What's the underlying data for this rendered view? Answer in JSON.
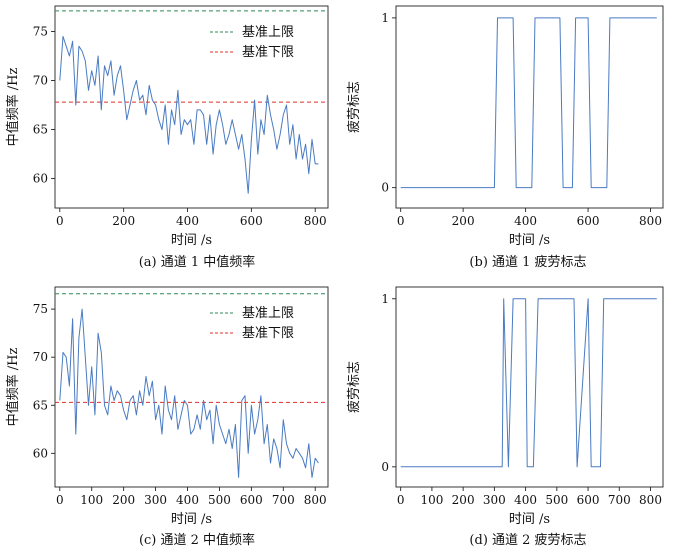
{
  "chart_data": [
    {
      "type": "line",
      "caption": "(a) 通道 1 中值频率",
      "xlabel": "时间 /s",
      "ylabel": "中值频率 /Hz",
      "xlim": [
        -15,
        840
      ],
      "ylim": [
        57,
        77.6
      ],
      "xticks": [
        0,
        200,
        400,
        600,
        800
      ],
      "yticks": [
        60,
        65,
        70,
        75
      ],
      "grid": false,
      "legend_position": "top-right",
      "reference_lines": [
        {
          "name": "基准上限",
          "y": 77.1,
          "color": "#2e8b57",
          "style": "dashed"
        },
        {
          "name": "基准下限",
          "y": 67.8,
          "color": "#e0302a",
          "style": "dashed"
        }
      ],
      "series": [
        {
          "name": "",
          "color": "#4a7bc2",
          "x": [
            0,
            10,
            20,
            30,
            40,
            50,
            60,
            70,
            80,
            90,
            100,
            110,
            120,
            130,
            140,
            150,
            160,
            170,
            180,
            190,
            200,
            210,
            220,
            230,
            240,
            250,
            260,
            270,
            280,
            290,
            300,
            310,
            320,
            330,
            340,
            350,
            360,
            370,
            380,
            390,
            400,
            410,
            420,
            430,
            440,
            450,
            460,
            470,
            480,
            490,
            500,
            510,
            520,
            530,
            540,
            550,
            560,
            570,
            580,
            590,
            600,
            610,
            620,
            630,
            640,
            650,
            660,
            670,
            680,
            690,
            700,
            710,
            720,
            730,
            740,
            750,
            760,
            770,
            780,
            790,
            800,
            810
          ],
          "y": [
            70.0,
            74.5,
            73.5,
            72.5,
            74.0,
            67.5,
            73.5,
            73.0,
            72.0,
            69.0,
            71.0,
            69.5,
            72.5,
            67.0,
            71.5,
            70.5,
            72.0,
            68.5,
            70.5,
            71.5,
            69.0,
            66.0,
            67.5,
            69.0,
            70.0,
            68.0,
            68.5,
            66.5,
            69.5,
            68.0,
            67.5,
            66.0,
            65.0,
            67.5,
            63.5,
            67.0,
            65.5,
            69.0,
            64.5,
            66.0,
            65.5,
            66.0,
            63.5,
            67.0,
            67.0,
            66.5,
            63.5,
            66.5,
            62.5,
            65.5,
            67.0,
            65.5,
            63.5,
            64.5,
            66.0,
            64.5,
            63.0,
            64.5,
            62.0,
            58.5,
            64.0,
            68.0,
            62.5,
            66.0,
            64.5,
            68.5,
            66.5,
            65.0,
            63.0,
            64.5,
            66.5,
            67.5,
            63.5,
            65.5,
            62.0,
            64.5,
            62.0,
            63.5,
            60.5,
            64.0,
            61.5,
            61.5
          ]
        }
      ]
    },
    {
      "type": "line",
      "caption": "(b) 通道 1 疲劳标志",
      "xlabel": "时间 /s",
      "ylabel": "疲劳标志",
      "xlim": [
        -15,
        840
      ],
      "ylim": [
        -0.12,
        1.07
      ],
      "xticks": [
        0,
        200,
        400,
        600,
        800
      ],
      "yticks": [
        0,
        1
      ],
      "grid": false,
      "series": [
        {
          "name": "",
          "color": "#4a7bc2",
          "x": [
            0,
            300,
            310,
            360,
            370,
            420,
            430,
            510,
            520,
            550,
            560,
            600,
            610,
            660,
            670,
            820
          ],
          "y": [
            0,
            0,
            1,
            1,
            0,
            0,
            1,
            1,
            0,
            0,
            1,
            1,
            0,
            0,
            1,
            1
          ]
        }
      ]
    },
    {
      "type": "line",
      "caption": "(c) 通道 2 中值频率",
      "xlabel": "时间 /s",
      "ylabel": "中值频率 /Hz",
      "xlim": [
        -15,
        840
      ],
      "ylim": [
        56.5,
        77.3
      ],
      "xticks": [
        0,
        100,
        200,
        300,
        400,
        500,
        600,
        700,
        800
      ],
      "yticks": [
        60,
        65,
        70,
        75
      ],
      "grid": false,
      "legend_position": "top-right",
      "reference_lines": [
        {
          "name": "基准上限",
          "y": 76.6,
          "color": "#2e8b57",
          "style": "dashed"
        },
        {
          "name": "基准下限",
          "y": 65.3,
          "color": "#e0302a",
          "style": "dashed"
        }
      ],
      "series": [
        {
          "name": "",
          "color": "#4a7bc2",
          "x": [
            0,
            10,
            20,
            30,
            40,
            50,
            60,
            70,
            80,
            90,
            100,
            110,
            120,
            130,
            140,
            150,
            160,
            170,
            180,
            190,
            200,
            210,
            220,
            230,
            240,
            250,
            260,
            270,
            280,
            290,
            300,
            310,
            320,
            330,
            340,
            350,
            360,
            370,
            380,
            390,
            400,
            410,
            420,
            430,
            440,
            450,
            460,
            470,
            480,
            490,
            500,
            510,
            520,
            530,
            540,
            550,
            560,
            570,
            580,
            590,
            600,
            610,
            620,
            630,
            640,
            650,
            660,
            670,
            680,
            690,
            700,
            710,
            720,
            730,
            740,
            750,
            760,
            770,
            780,
            790,
            800,
            810
          ],
          "y": [
            65.5,
            70.5,
            70.0,
            67.0,
            74.0,
            62.0,
            72.0,
            75.0,
            70.0,
            65.0,
            69.0,
            64.0,
            72.5,
            70.5,
            65.0,
            64.0,
            67.0,
            65.5,
            66.5,
            66.0,
            64.5,
            63.5,
            65.5,
            66.0,
            64.0,
            66.5,
            65.0,
            68.0,
            66.0,
            67.5,
            63.5,
            65.0,
            62.0,
            67.0,
            64.5,
            63.5,
            66.0,
            62.5,
            64.0,
            65.5,
            65.0,
            62.0,
            62.5,
            64.0,
            62.5,
            65.5,
            63.5,
            64.5,
            61.0,
            65.0,
            63.0,
            62.0,
            61.0,
            62.5,
            60.5,
            63.0,
            57.5,
            65.5,
            66.0,
            60.0,
            65.0,
            62.0,
            63.5,
            66.0,
            61.0,
            63.0,
            59.0,
            61.5,
            60.5,
            58.5,
            63.5,
            61.0,
            60.0,
            59.5,
            60.5,
            60.0,
            59.5,
            58.5,
            61.0,
            57.5,
            59.5,
            59.0
          ]
        }
      ]
    },
    {
      "type": "line",
      "caption": "(d) 通道 2 疲劳标志",
      "xlabel": "时间 /s",
      "ylabel": "疲劳标志",
      "xlim": [
        -15,
        840
      ],
      "ylim": [
        -0.12,
        1.07
      ],
      "xticks": [
        0,
        100,
        200,
        300,
        400,
        500,
        600,
        700,
        800
      ],
      "yticks": [
        0,
        1
      ],
      "grid": false,
      "series": [
        {
          "name": "",
          "color": "#4a7bc2",
          "x": [
            0,
            325,
            330,
            345,
            360,
            400,
            405,
            425,
            440,
            555,
            565,
            600,
            610,
            640,
            650,
            820
          ],
          "y": [
            0,
            0,
            1,
            0,
            1,
            1,
            0,
            0,
            1,
            1,
            0,
            1,
            0,
            0,
            1,
            1
          ]
        }
      ]
    }
  ]
}
